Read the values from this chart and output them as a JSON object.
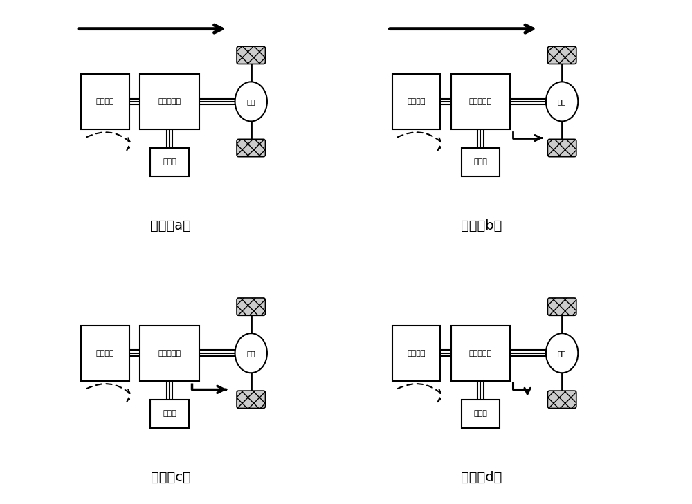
{
  "modes": [
    "模式（a）",
    "模式（b）",
    "模式（c）",
    "模式（d）"
  ],
  "labels": {
    "fuel_cell": "燃料电池",
    "power_converter": "功率变换器",
    "motor": "电机",
    "battery": "蓄电池"
  },
  "bg_color": "#ffffff"
}
